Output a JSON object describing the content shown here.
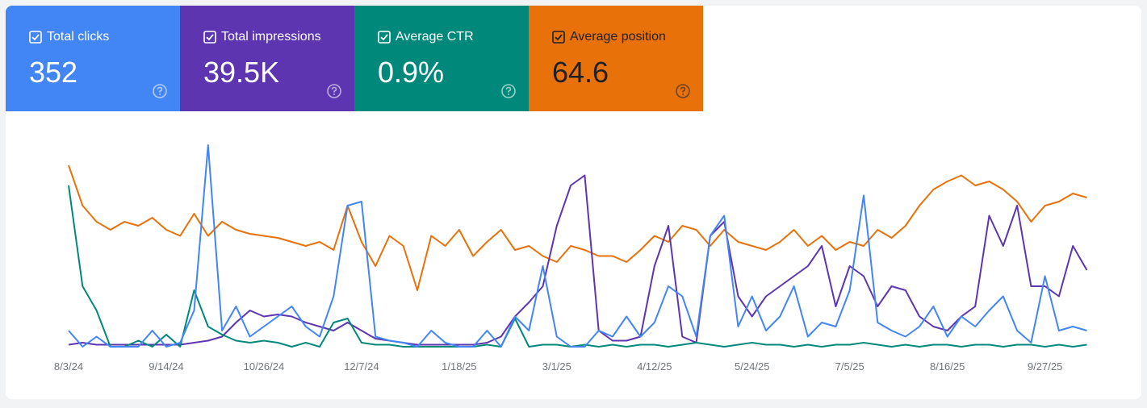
{
  "chart_data": {
    "type": "line",
    "xlim": [
      0,
      442
    ],
    "ylim": [
      0,
      100
    ],
    "xticks": [
      {
        "value": 0,
        "label": "8/3/24"
      },
      {
        "value": 42,
        "label": "9/14/24"
      },
      {
        "value": 84,
        "label": "10/26/24"
      },
      {
        "value": 126,
        "label": "12/7/24"
      },
      {
        "value": 168,
        "label": "1/18/25"
      },
      {
        "value": 210,
        "label": "3/1/25"
      },
      {
        "value": 252,
        "label": "4/12/25"
      },
      {
        "value": 294,
        "label": "5/24/25"
      },
      {
        "value": 336,
        "label": "7/5/25"
      },
      {
        "value": 378,
        "label": "8/16/25"
      },
      {
        "value": 420,
        "label": "9/27/25"
      }
    ],
    "x": [
      0,
      6,
      12,
      18,
      24,
      30,
      36,
      42,
      48,
      54,
      60,
      66,
      72,
      78,
      84,
      90,
      96,
      102,
      108,
      114,
      120,
      126,
      132,
      138,
      144,
      150,
      156,
      162,
      168,
      174,
      180,
      186,
      192,
      198,
      204,
      210,
      216,
      222,
      228,
      234,
      240,
      246,
      252,
      258,
      264,
      270,
      276,
      282,
      288,
      294,
      300,
      306,
      312,
      318,
      324,
      330,
      336,
      342,
      348,
      354,
      360,
      366,
      372,
      378,
      384,
      390,
      396,
      402,
      408,
      414,
      420,
      426,
      432,
      438
    ],
    "series": [
      {
        "name": "Total clicks",
        "total": "352",
        "color": "#4285f4",
        "values": [
          8,
          0,
          5,
          0,
          0,
          0,
          8,
          0,
          2,
          18,
          100,
          8,
          20,
          5,
          10,
          15,
          20,
          10,
          5,
          25,
          70,
          72,
          5,
          3,
          2,
          0,
          8,
          2,
          0,
          0,
          8,
          0,
          15,
          8,
          40,
          5,
          0,
          0,
          8,
          5,
          15,
          5,
          12,
          30,
          25,
          5,
          55,
          65,
          10,
          25,
          8,
          15,
          30,
          5,
          12,
          10,
          28,
          75,
          12,
          8,
          5,
          10,
          20,
          5,
          15,
          10,
          18,
          25,
          8,
          2,
          35,
          8,
          10,
          8
        ]
      },
      {
        "name": "Total impressions",
        "total": "39.5K",
        "color": "#5e35b1",
        "values": [
          1,
          2,
          1,
          1,
          1,
          1,
          1,
          1,
          1,
          2,
          3,
          5,
          12,
          18,
          15,
          16,
          15,
          12,
          10,
          8,
          12,
          8,
          4,
          3,
          2,
          1,
          1,
          1,
          1,
          1,
          2,
          5,
          15,
          22,
          30,
          60,
          80,
          85,
          8,
          3,
          3,
          5,
          40,
          60,
          5,
          2,
          55,
          62,
          25,
          15,
          25,
          30,
          35,
          40,
          50,
          20,
          40,
          35,
          20,
          30,
          28,
          15,
          10,
          8,
          15,
          20,
          65,
          50,
          70,
          30,
          30,
          25,
          50,
          38
        ]
      },
      {
        "name": "Average CTR",
        "total": "0.9%",
        "color": "#00897b",
        "values": [
          80,
          30,
          18,
          0,
          0,
          3,
          0,
          6,
          0,
          28,
          10,
          6,
          3,
          2,
          3,
          2,
          0,
          2,
          0,
          12,
          14,
          2,
          1,
          1,
          0,
          0,
          0,
          0,
          0,
          0,
          1,
          0,
          14,
          0,
          1,
          1,
          0,
          1,
          0,
          1,
          0,
          1,
          1,
          0,
          1,
          2,
          1,
          0,
          1,
          2,
          1,
          1,
          0,
          1,
          0,
          1,
          1,
          2,
          1,
          0,
          1,
          0,
          1,
          1,
          0,
          1,
          1,
          0,
          1,
          1,
          0,
          1,
          0,
          1
        ]
      },
      {
        "name": "Average position",
        "total": "64.6",
        "color": "#e8710a",
        "values": [
          90,
          70,
          62,
          58,
          62,
          60,
          64,
          58,
          55,
          66,
          55,
          62,
          58,
          56,
          55,
          54,
          52,
          50,
          52,
          48,
          70,
          52,
          40,
          55,
          50,
          28,
          55,
          50,
          58,
          45,
          52,
          58,
          48,
          50,
          45,
          42,
          50,
          48,
          45,
          45,
          42,
          48,
          55,
          52,
          60,
          58,
          50,
          58,
          52,
          50,
          48,
          52,
          58,
          50,
          55,
          48,
          52,
          50,
          58,
          54,
          60,
          70,
          78,
          82,
          85,
          80,
          82,
          78,
          72,
          62,
          70,
          72,
          76,
          74
        ]
      }
    ]
  }
}
